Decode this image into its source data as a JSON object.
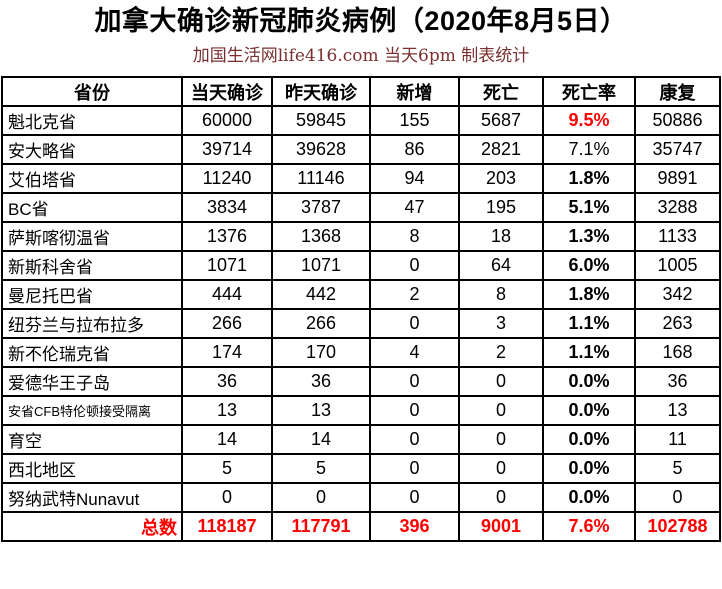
{
  "page": {
    "title": "加拿大确诊新冠肺炎病例（2020年8月5日）",
    "subtitle": "加国生活网life416.com 当天6pm 制表统计"
  },
  "colors": {
    "highlight_red": "#ff0000",
    "text_black": "#000000",
    "subtitle_maroon": "#7a3030"
  },
  "table": {
    "columns": [
      "省份",
      "当天确诊",
      "昨天确诊",
      "新增",
      "死亡",
      "死亡率",
      "康复"
    ],
    "rows": [
      {
        "province": "魁北克省",
        "today": "60000",
        "yesterday": "59845",
        "new": "155",
        "deaths": "5687",
        "death_rate": "9.5%",
        "recovered": "50886",
        "rate_style": "red",
        "small_label": false
      },
      {
        "province": "安大略省",
        "today": "39714",
        "yesterday": "39628",
        "new": "86",
        "deaths": "2821",
        "death_rate": "7.1%",
        "recovered": "35747",
        "rate_style": "plain",
        "small_label": false
      },
      {
        "province": "艾伯塔省",
        "today": "11240",
        "yesterday": "11146",
        "new": "94",
        "deaths": "203",
        "death_rate": "1.8%",
        "recovered": "9891",
        "rate_style": "bold",
        "small_label": false
      },
      {
        "province": "BC省",
        "today": "3834",
        "yesterday": "3787",
        "new": "47",
        "deaths": "195",
        "death_rate": "5.1%",
        "recovered": "3288",
        "rate_style": "bold",
        "small_label": false
      },
      {
        "province": "萨斯喀彻温省",
        "today": "1376",
        "yesterday": "1368",
        "new": "8",
        "deaths": "18",
        "death_rate": "1.3%",
        "recovered": "1133",
        "rate_style": "bold",
        "small_label": false
      },
      {
        "province": "新斯科舍省",
        "today": "1071",
        "yesterday": "1071",
        "new": "0",
        "deaths": "64",
        "death_rate": "6.0%",
        "recovered": "1005",
        "rate_style": "bold",
        "small_label": false
      },
      {
        "province": "曼尼托巴省",
        "today": "444",
        "yesterday": "442",
        "new": "2",
        "deaths": "8",
        "death_rate": "1.8%",
        "recovered": "342",
        "rate_style": "bold",
        "small_label": false
      },
      {
        "province": "纽芬兰与拉布拉多",
        "today": "266",
        "yesterday": "266",
        "new": "0",
        "deaths": "3",
        "death_rate": "1.1%",
        "recovered": "263",
        "rate_style": "bold",
        "small_label": false
      },
      {
        "province": "新不伦瑞克省",
        "today": "174",
        "yesterday": "170",
        "new": "4",
        "deaths": "2",
        "death_rate": "1.1%",
        "recovered": "168",
        "rate_style": "bold",
        "small_label": false
      },
      {
        "province": "爱德华王子岛",
        "today": "36",
        "yesterday": "36",
        "new": "0",
        "deaths": "0",
        "death_rate": "0.0%",
        "recovered": "36",
        "rate_style": "bold",
        "small_label": false
      },
      {
        "province": "安省CFB特伦顿接受隔离",
        "today": "13",
        "yesterday": "13",
        "new": "0",
        "deaths": "0",
        "death_rate": "0.0%",
        "recovered": "13",
        "rate_style": "bold",
        "small_label": true
      },
      {
        "province": "育空",
        "today": "14",
        "yesterday": "14",
        "new": "0",
        "deaths": "0",
        "death_rate": "0.0%",
        "recovered": "11",
        "rate_style": "bold",
        "small_label": false
      },
      {
        "province": "西北地区",
        "today": "5",
        "yesterday": "5",
        "new": "0",
        "deaths": "0",
        "death_rate": "0.0%",
        "recovered": "5",
        "rate_style": "bold",
        "small_label": false
      },
      {
        "province": "努纳武特Nunavut",
        "today": "0",
        "yesterday": "0",
        "new": "0",
        "deaths": "0",
        "death_rate": "0.0%",
        "recovered": "0",
        "rate_style": "bold",
        "small_label": false
      }
    ],
    "total": {
      "label": "总数",
      "today": "118187",
      "yesterday": "117791",
      "new": "396",
      "deaths": "9001",
      "death_rate": "7.6%",
      "recovered": "102788"
    }
  }
}
